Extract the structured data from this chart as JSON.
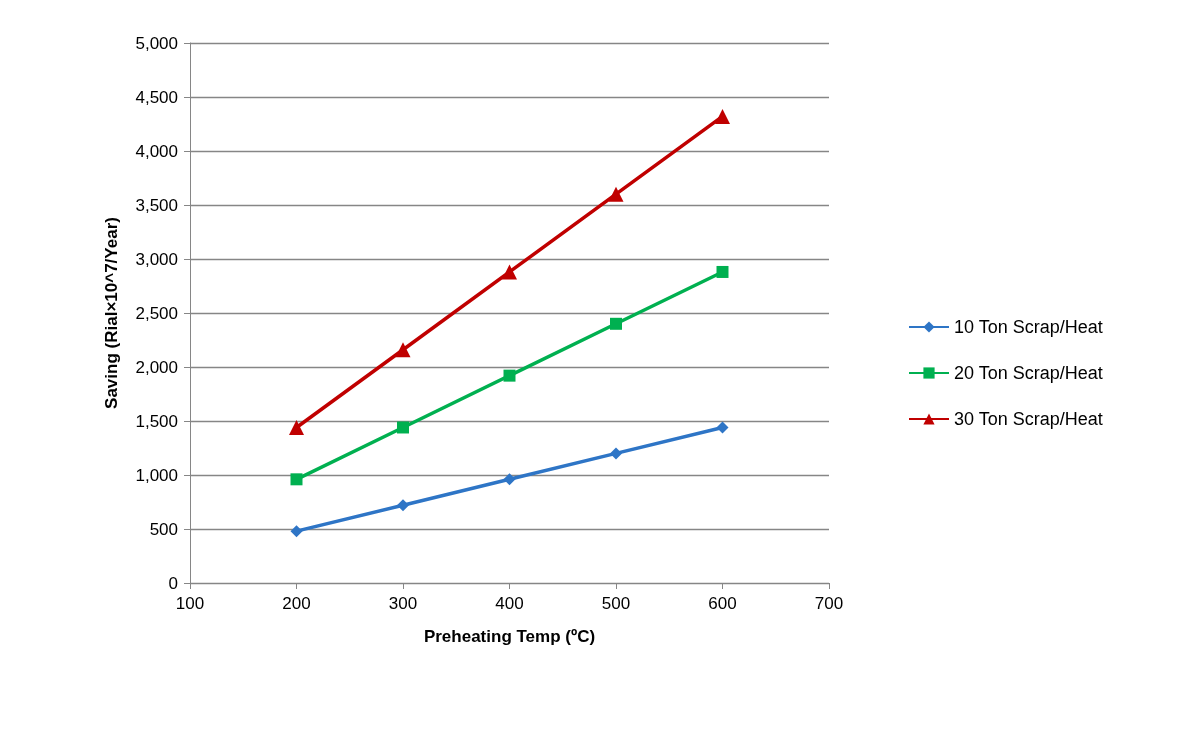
{
  "chart_data": {
    "type": "line",
    "xlabel": "Preheating Temp (ºC)",
    "ylabel": "Saving (Rial×10^7/Year)",
    "x": [
      200,
      300,
      400,
      500,
      600
    ],
    "series": [
      {
        "name": "10 Ton Scrap/Heat",
        "color": "#2e75c6",
        "marker": "diamond",
        "values": [
          480,
          720,
          960,
          1200,
          1440
        ]
      },
      {
        "name": "20 Ton Scrap/Heat",
        "color": "#00b050",
        "marker": "square",
        "values": [
          960,
          1440,
          1920,
          2400,
          2880
        ]
      },
      {
        "name": "30 Ton Scrap/Heat",
        "color": "#c00000",
        "marker": "triangle",
        "values": [
          1440,
          2160,
          2880,
          3600,
          4320
        ]
      }
    ],
    "xlim": [
      100,
      700
    ],
    "xticks": [
      100,
      200,
      300,
      400,
      500,
      600,
      700
    ],
    "ylim": [
      0,
      5000
    ],
    "yticks": [
      0,
      500,
      {
        "value": 1000,
        "label": "1,000"
      },
      {
        "value": 1500,
        "label": "1,500"
      },
      {
        "value": 2000,
        "label": "2,000"
      },
      {
        "value": 2500,
        "label": "2,500"
      },
      {
        "value": 3000,
        "label": "3,000"
      },
      {
        "value": 3500,
        "label": "3,500"
      },
      {
        "value": 4000,
        "label": "4,000"
      },
      {
        "value": 4500,
        "label": "4,500"
      },
      {
        "value": 5000,
        "label": "5,000"
      }
    ],
    "grid": "y",
    "legend": "right",
    "line_style": "solid"
  }
}
